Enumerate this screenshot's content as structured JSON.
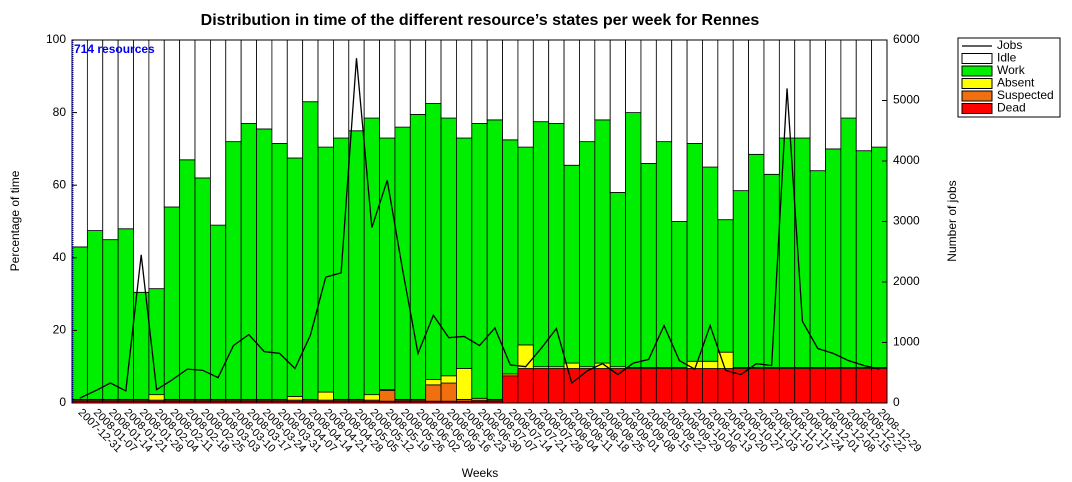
{
  "chart_data": {
    "type": "stacked_bar_line",
    "title": "Distribution in time of the different resource’s states per week for Rennes",
    "annotation": "714 resources",
    "x_label": "Weeks",
    "y_label": "Percentage of time",
    "y2_label": "Number of jobs",
    "categories": [
      "2007-12-31",
      "2008-01-07",
      "2008-01-14",
      "2008-01-21",
      "2008-01-28",
      "2008-02-04",
      "2008-02-11",
      "2008-02-18",
      "2008-02-25",
      "2008-03-03",
      "2008-03-10",
      "2008-03-17",
      "2008-03-24",
      "2008-03-31",
      "2008-04-07",
      "2008-04-14",
      "2008-04-21",
      "2008-04-28",
      "2008-05-05",
      "2008-05-12",
      "2008-05-19",
      "2008-05-26",
      "2008-06-02",
      "2008-06-09",
      "2008-06-16",
      "2008-06-23",
      "2008-06-30",
      "2008-07-07",
      "2008-07-14",
      "2008-07-21",
      "2008-07-28",
      "2008-08-04",
      "2008-08-11",
      "2008-08-18",
      "2008-08-25",
      "2008-09-01",
      "2008-09-08",
      "2008-09-15",
      "2008-09-22",
      "2008-09-29",
      "2008-10-06",
      "2008-10-13",
      "2008-10-20",
      "2008-10-27",
      "2008-11-03",
      "2008-11-10",
      "2008-11-17",
      "2008-11-24",
      "2008-12-01",
      "2008-12-08",
      "2008-12-15",
      "2008-12-22",
      "2008-12-29"
    ],
    "series": [
      {
        "name": "Jobs",
        "kind": "line",
        "axis": "y2",
        "color": "#000000",
        "values": [
          80,
          200,
          330,
          200,
          2450,
          220,
          380,
          560,
          540,
          420,
          950,
          1130,
          850,
          820,
          570,
          1120,
          2080,
          2150,
          5700,
          2900,
          3680,
          2200,
          820,
          1450,
          1080,
          1100,
          950,
          1240,
          630,
          600,
          900,
          1230,
          330,
          530,
          650,
          470,
          660,
          720,
          1280,
          700,
          560,
          1280,
          540,
          470,
          650,
          620,
          5200,
          1350,
          900,
          820,
          700,
          620,
          560
        ]
      },
      {
        "name": "Idle",
        "kind": "bar",
        "color": "#ffffff",
        "values": [
          57,
          52.5,
          55,
          52,
          69.5,
          68.5,
          46,
          33,
          38,
          51,
          28,
          23,
          24.5,
          28.5,
          32.5,
          17,
          29.5,
          27,
          25,
          21.5,
          27,
          24,
          20.5,
          17.5,
          21.5,
          27,
          23,
          22,
          27.5,
          29.5,
          22.5,
          23,
          34.5,
          28,
          22,
          42,
          20,
          34,
          28,
          50,
          28.5,
          35,
          49.5,
          41.5,
          31.5,
          37,
          27,
          27,
          36,
          30,
          21.5,
          30.5,
          29.5
        ]
      },
      {
        "name": "Work",
        "kind": "bar",
        "color": "#00ee00",
        "values": [
          42,
          46.5,
          44,
          47,
          29.5,
          29.2,
          53,
          66,
          61,
          48,
          71,
          76,
          74.5,
          70.5,
          65.7,
          82,
          67.5,
          72,
          74,
          76.2,
          69.3,
          75,
          78.5,
          76,
          71,
          63.5,
          75.7,
          77,
          64.5,
          54.5,
          67.5,
          67,
          54.5,
          62,
          67,
          48,
          70.2,
          56.2,
          62.2,
          40.2,
          60,
          53.5,
          36.5,
          48.7,
          58.7,
          53.2,
          63.2,
          63.2,
          54.2,
          60.2,
          68.7,
          59.7,
          60.7
        ]
      },
      {
        "name": "Absent",
        "kind": "bar",
        "color": "#ffff00",
        "values": [
          0.2,
          0.2,
          0.2,
          0.2,
          0.2,
          1.5,
          0.2,
          0.2,
          0.2,
          0.2,
          0.2,
          0.2,
          0.2,
          0.2,
          1,
          0.2,
          2.2,
          0.2,
          0.2,
          1.5,
          0.2,
          0.2,
          0.2,
          1.5,
          2,
          8.5,
          0.5,
          0.2,
          0.5,
          6.5,
          0.5,
          0.5,
          1.5,
          0.5,
          1.5,
          0.5,
          0.3,
          0.3,
          0.3,
          0.3,
          2,
          2,
          4.5,
          0.3,
          0.3,
          0.3,
          0.3,
          0.3,
          0.3,
          0.3,
          0.3,
          0.3,
          0.3
        ]
      },
      {
        "name": "Suspected",
        "kind": "bar",
        "color": "#f07010",
        "values": [
          0.3,
          0.3,
          0.3,
          0.3,
          0.3,
          0.3,
          0.3,
          0.3,
          0.3,
          0.3,
          0.3,
          0.3,
          0.3,
          0.3,
          0.3,
          0.3,
          0.3,
          0.3,
          0.3,
          0.3,
          3,
          0.3,
          0.3,
          4.5,
          5,
          0.5,
          0.3,
          0.3,
          0,
          0,
          0,
          0,
          0,
          0,
          0,
          0,
          0,
          0,
          0,
          0,
          0,
          0,
          0,
          0,
          0,
          0,
          0,
          0,
          0,
          0,
          0,
          0,
          0
        ]
      },
      {
        "name": "Dead",
        "kind": "bar",
        "color": "#ff0000",
        "values": [
          0.5,
          0.5,
          0.5,
          0.5,
          0.5,
          0.5,
          0.5,
          0.5,
          0.5,
          0.5,
          0.5,
          0.5,
          0.5,
          0.5,
          0.5,
          0.5,
          0.5,
          0.5,
          0.5,
          0.5,
          0.5,
          0.5,
          0.5,
          0.5,
          0.5,
          0.5,
          0.5,
          0.5,
          7.5,
          9.5,
          9.5,
          9.5,
          9.5,
          9.5,
          9.5,
          9.5,
          9.5,
          9.5,
          9.5,
          9.5,
          9.5,
          9.5,
          9.5,
          9.5,
          9.5,
          9.5,
          9.5,
          9.5,
          9.5,
          9.5,
          9.5,
          9.5,
          9.5
        ]
      }
    ],
    "ylim": [
      0,
      100
    ],
    "yticks": [
      0,
      20,
      40,
      60,
      80,
      100
    ],
    "y2lim": [
      0,
      6000
    ],
    "y2ticks": [
      0,
      1000,
      2000,
      3000,
      4000,
      5000,
      6000
    ],
    "legend": "outside-right"
  }
}
